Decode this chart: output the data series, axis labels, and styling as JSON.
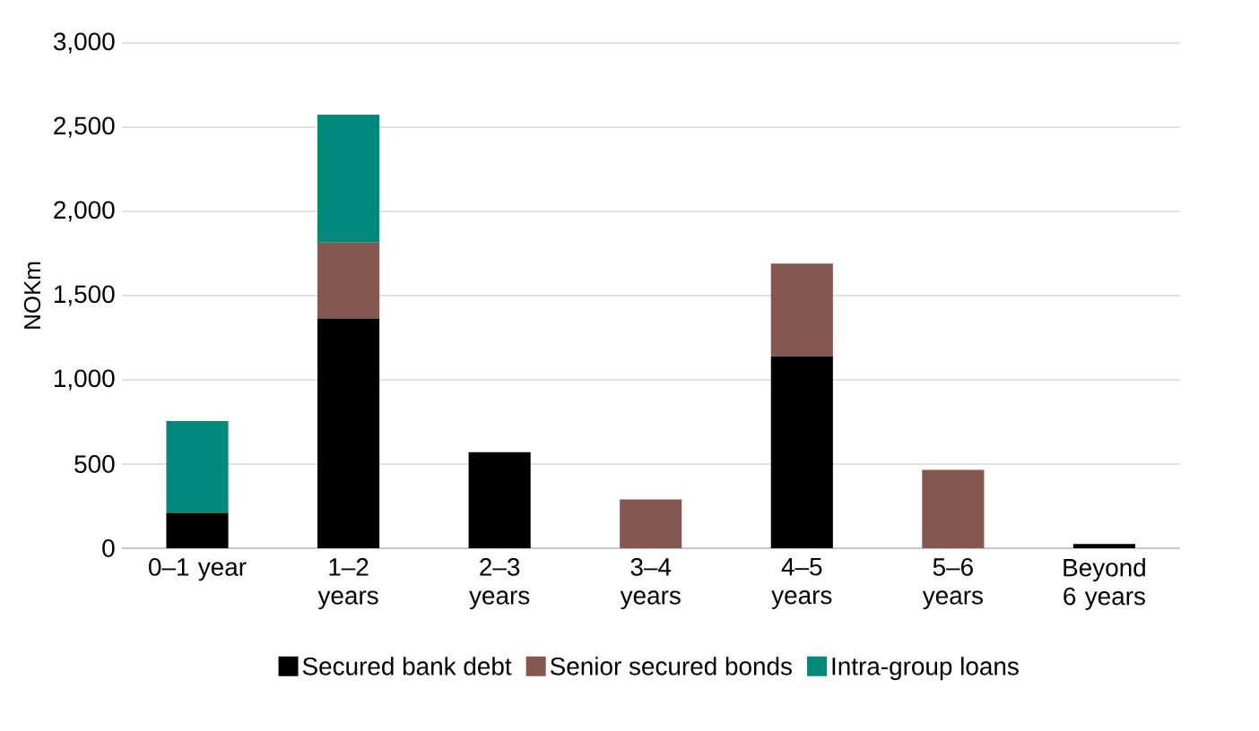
{
  "chart_data": {
    "type": "bar",
    "stacked": true,
    "ylabel": "NOKm",
    "categories": [
      "0–1 year",
      "1–2 years",
      "2–3 years",
      "3–4 years",
      "4–5 years",
      "5–6 years",
      "Beyond 6 years"
    ],
    "series": [
      {
        "name": "Secured bank debt",
        "color": "#000000",
        "values": [
          210,
          1365,
          570,
          0,
          1140,
          0,
          25
        ]
      },
      {
        "name": "Senior secured bonds",
        "color": "#845750",
        "values": [
          0,
          450,
          0,
          290,
          550,
          465,
          0
        ]
      },
      {
        "name": "Intra-group loans",
        "color": "#00897b",
        "values": [
          545,
          760,
          0,
          0,
          0,
          0,
          0
        ]
      }
    ],
    "ylim": [
      0,
      3000
    ],
    "yticks": [
      0,
      500,
      {
        "value": 1000,
        "label": "1,000"
      },
      {
        "value": 1500,
        "label": "1,500"
      },
      {
        "value": 2000,
        "label": "2,000"
      },
      {
        "value": 2500,
        "label": "2,500"
      },
      {
        "value": 3000,
        "label": "3,000"
      }
    ],
    "grid": "y",
    "legend": "bottom"
  }
}
